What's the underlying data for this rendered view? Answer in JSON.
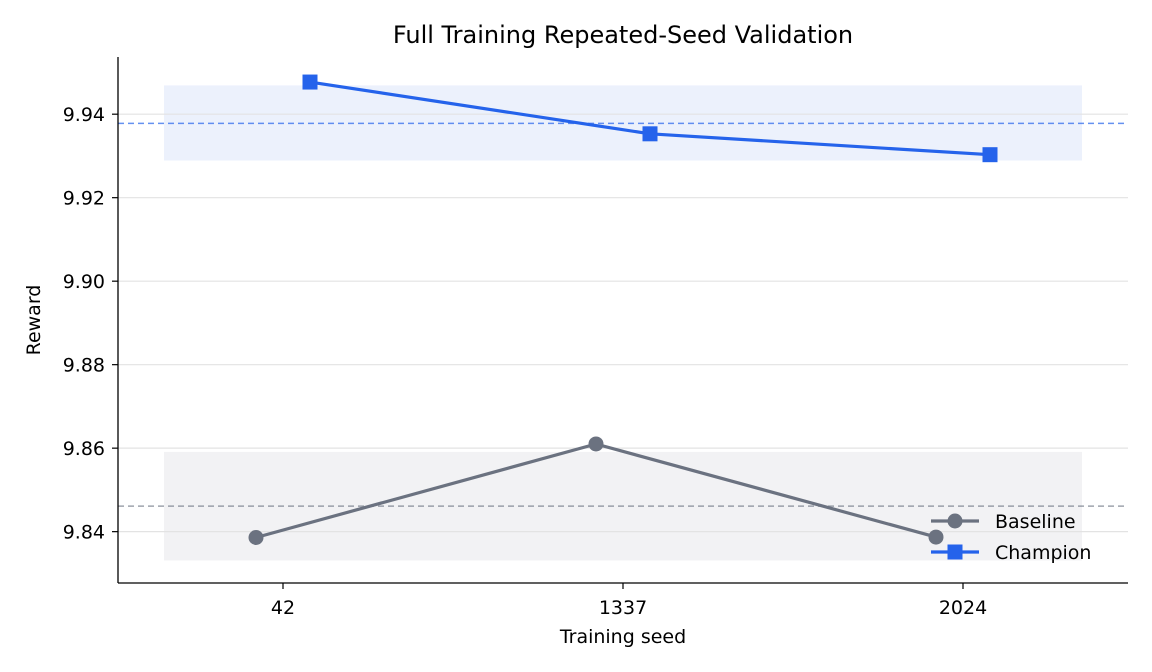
{
  "chart_data": {
    "type": "line",
    "title": "Full Training Repeated-Seed Validation",
    "xlabel": "Training seed",
    "ylabel": "Reward",
    "categories": [
      "42",
      "1337",
      "2024"
    ],
    "ylim": [
      9.8277,
      9.9537
    ],
    "yticks": [
      9.84,
      9.86,
      9.88,
      9.9,
      9.92,
      9.94
    ],
    "ytick_labels": [
      "9.84",
      "9.86",
      "9.88",
      "9.90",
      "9.92",
      "9.94"
    ],
    "grid": "horizontal",
    "legend_position": "lower-right",
    "series": [
      {
        "name": "Baseline",
        "values": [
          9.8386,
          9.861,
          9.8387
        ],
        "marker": "circle",
        "color": "#6b7280",
        "mean": 9.8461,
        "band": [
          9.8331,
          9.8591
        ],
        "band_color": "#f2f2f4"
      },
      {
        "name": "Champion",
        "values": [
          9.9477,
          9.9353,
          9.9303
        ],
        "marker": "square",
        "color": "#2563eb",
        "mean": 9.9378,
        "band": [
          9.9289,
          9.9469
        ],
        "band_color": "#ecf1fc"
      }
    ]
  }
}
